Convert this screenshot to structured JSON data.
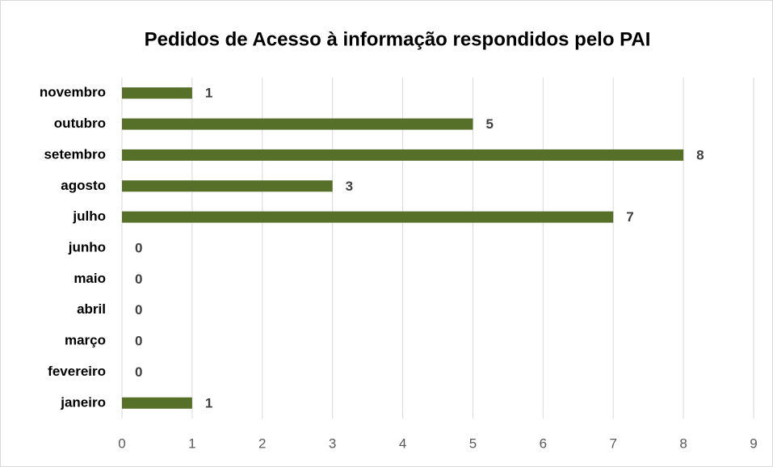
{
  "chart_data": {
    "type": "bar",
    "orientation": "horizontal",
    "title": "Pedidos de Acesso à informação respondidos pelo PAI",
    "categories": [
      "janeiro",
      "fevereiro",
      "março",
      "abril",
      "maio",
      "junho",
      "julho",
      "agosto",
      "setembro",
      "outubro",
      "novembro"
    ],
    "values": [
      1,
      0,
      0,
      0,
      0,
      0,
      7,
      3,
      8,
      5,
      1
    ],
    "color": "#56702a",
    "xlim": [
      0,
      9
    ],
    "xticks": [
      0,
      1,
      2,
      3,
      4,
      5,
      6,
      7,
      8,
      9
    ],
    "grid": true
  }
}
